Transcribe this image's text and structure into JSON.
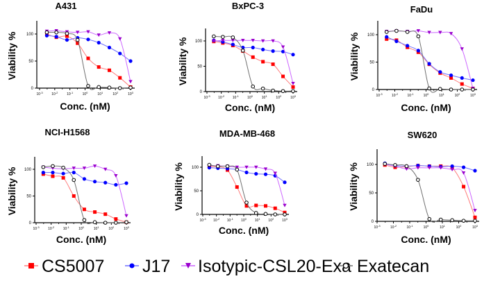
{
  "chart_data": [
    {
      "type": "scatter",
      "title": "A431",
      "xlabel": "Conc. (nM)",
      "ylabel": "Viability %",
      "xscale": "log",
      "xlim": [
        0.001,
        1000
      ],
      "ylim": [
        0,
        125
      ],
      "xticks": [
        "10-3",
        "10-2",
        "10-1",
        "100",
        "101",
        "102",
        "103"
      ],
      "yticks": [
        "0",
        "50",
        "100"
      ],
      "x": [
        0.003,
        0.0128,
        0.064,
        0.32,
        1.6,
        8,
        40,
        200,
        1000
      ],
      "series": [
        {
          "name": "CS5007",
          "values": [
            100,
            94,
            96,
            83,
            55,
            39,
            33,
            19,
            2
          ]
        },
        {
          "name": "J17",
          "values": [
            97,
            95,
            89,
            93,
            90,
            84,
            75,
            64,
            50
          ]
        },
        {
          "name": "Isotypic-CSL20-Exa",
          "values": [
            105,
            106,
            104,
            103,
            104,
            98,
            102,
            91,
            12
          ]
        },
        {
          "name": "Exatecan",
          "values": [
            103,
            103,
            101,
            89,
            4,
            2,
            1,
            0,
            1
          ]
        }
      ]
    },
    {
      "type": "scatter",
      "title": "BxPC-3",
      "xlabel": "Conc. (nM)",
      "ylabel": "Viability %",
      "xscale": "log",
      "xlim": [
        0.001,
        1000
      ],
      "ylim": [
        0,
        125
      ],
      "xticks": [
        "10-3",
        "10-2",
        "10-1",
        "100",
        "101",
        "102",
        "103"
      ],
      "yticks": [
        "0",
        "50",
        "100"
      ],
      "x": [
        0.003,
        0.0128,
        0.064,
        0.32,
        1.6,
        8,
        40,
        200,
        1000
      ],
      "series": [
        {
          "name": "CS5007",
          "values": [
            99,
            96,
            91,
            80,
            68,
            59,
            54,
            30,
            9
          ]
        },
        {
          "name": "J17",
          "values": [
            101,
            98,
            93,
            87,
            87,
            83,
            80,
            79,
            73
          ]
        },
        {
          "name": "Isotypic-CSL20-Exa",
          "values": [
            100,
            101,
            101,
            101,
            101,
            100,
            100,
            88,
            16
          ]
        },
        {
          "name": "Exatecan",
          "values": [
            109,
            108,
            107,
            81,
            10,
            6,
            2,
            1,
            1
          ]
        }
      ]
    },
    {
      "type": "scatter",
      "title": "FaDu",
      "xlabel": "Conc. (nM)",
      "ylabel": "Viability %",
      "xscale": "log",
      "xlim": [
        0.001,
        1000
      ],
      "ylim": [
        0,
        125
      ],
      "xticks": [
        "10-3",
        "10-2",
        "10-1",
        "100",
        "101",
        "102",
        "103"
      ],
      "yticks": [
        "0",
        "50",
        "100"
      ],
      "x": [
        0.003,
        0.0128,
        0.064,
        0.32,
        1.6,
        8,
        40,
        200,
        1000
      ],
      "series": [
        {
          "name": "CS5007",
          "values": [
            92,
            90,
            77,
            68,
            46,
            30,
            21,
            10,
            2
          ]
        },
        {
          "name": "J17",
          "values": [
            96,
            88,
            80,
            71,
            47,
            32,
            26,
            21,
            17
          ]
        },
        {
          "name": "Isotypic-CSL20-Exa",
          "values": [
            106,
            107,
            106,
            107,
            104,
            104,
            102,
            74,
            2
          ]
        },
        {
          "name": "Exatecan",
          "values": [
            105,
            107,
            105,
            97,
            2,
            1,
            0,
            0,
            0
          ]
        }
      ]
    },
    {
      "type": "scatter",
      "title": "NCI-H1568",
      "xlabel": "Conc. (nM)",
      "ylabel": "Viability %",
      "xscale": "log",
      "xlim": [
        0.001,
        1000
      ],
      "ylim": [
        0,
        125
      ],
      "xticks": [
        "10-3",
        "10-2",
        "10-1",
        "100",
        "101",
        "102",
        "103"
      ],
      "yticks": [
        "0",
        "50",
        "100"
      ],
      "x": [
        0.003,
        0.0128,
        0.064,
        0.32,
        1.6,
        8,
        40,
        200,
        1000
      ],
      "series": [
        {
          "name": "CS5007",
          "values": [
            91,
            87,
            84,
            50,
            25,
            20,
            16,
            7,
            1
          ]
        },
        {
          "name": "J17",
          "values": [
            94,
            94,
            92,
            94,
            82,
            77,
            75,
            71,
            74
          ]
        },
        {
          "name": "Isotypic-CSL20-Exa",
          "values": [
            104,
            102,
            101,
            102,
            102,
            106,
            100,
            88,
            13
          ]
        },
        {
          "name": "Exatecan",
          "values": [
            104,
            106,
            103,
            80,
            5,
            1,
            0,
            0,
            1
          ]
        }
      ]
    },
    {
      "type": "scatter",
      "title": "MDA-MB-468",
      "xlabel": "Conc. (nM)",
      "ylabel": "Viability %",
      "xscale": "log",
      "xlim": [
        0.001,
        1000
      ],
      "ylim": [
        0,
        125
      ],
      "xticks": [
        "10-3",
        "10-2",
        "10-1",
        "100",
        "101",
        "102",
        "103"
      ],
      "yticks": [
        "0",
        "50",
        "100"
      ],
      "x": [
        0.003,
        0.0128,
        0.064,
        0.32,
        1.6,
        8,
        40,
        200,
        1000
      ],
      "series": [
        {
          "name": "CS5007",
          "values": [
            101,
            101,
            94,
            58,
            18,
            19,
            18,
            13,
            4
          ]
        },
        {
          "name": "J17",
          "values": [
            99,
            98,
            97,
            95,
            89,
            86,
            85,
            82,
            68
          ]
        },
        {
          "name": "Isotypic-CSL20-Exa",
          "values": [
            103,
            103,
            102,
            100,
            100,
            100,
            96,
            87,
            19
          ]
        },
        {
          "name": "Exatecan",
          "values": [
            105,
            102,
            102,
            95,
            25,
            3,
            1,
            0,
            0
          ]
        }
      ]
    },
    {
      "type": "scatter",
      "title": "SW620",
      "xlabel": "Conc. (nM)",
      "ylabel": "Viability %",
      "xscale": "log",
      "xlim": [
        0.001,
        1000
      ],
      "ylim": [
        0,
        125
      ],
      "xticks": [
        "10-3",
        "10-2",
        "10-1",
        "100",
        "101",
        "102",
        "103"
      ],
      "yticks": [
        "0",
        "50",
        "100"
      ],
      "x": [
        0.003,
        0.0128,
        0.064,
        0.32,
        1.6,
        8,
        40,
        200,
        1000
      ],
      "series": [
        {
          "name": "CS5007",
          "values": [
            99,
            95,
            96,
            98,
            97,
            97,
            94,
            61,
            7
          ]
        },
        {
          "name": "J17",
          "values": [
            102,
            98,
            97,
            98,
            97,
            96,
            97,
            95,
            89
          ]
        },
        {
          "name": "Isotypic-CSL20-Exa",
          "values": [
            100,
            97,
            92,
            94,
            94,
            94,
            91,
            85,
            19
          ]
        },
        {
          "name": "Exatecan",
          "values": [
            101,
            99,
            97,
            73,
            4,
            3,
            2,
            1,
            1
          ]
        }
      ]
    }
  ],
  "legend": {
    "placement": "bottom",
    "items": [
      {
        "name": "CS5007",
        "color": "#ff0000",
        "marker": "square"
      },
      {
        "name": "J17",
        "color": "#0000ff",
        "marker": "circle"
      },
      {
        "name": "Isotypic-CSL20-Exa",
        "color": "#9933ff",
        "marker": "triangle-down"
      },
      {
        "name": "Exatecan",
        "color": "#000000",
        "marker": "open-circle"
      }
    ]
  },
  "colors": {
    "CS5007": "#ff0000",
    "CS5007_line": "#ff7b7b",
    "J17": "#0000ff",
    "J17_line": "#6f6fff",
    "Isotypic-CSL20-Exa": "#9900cc",
    "Isotypic-CSL20-Exa_line": "#cc66ff",
    "Exatecan": "#000000",
    "Exatecan_line": "#707070"
  }
}
